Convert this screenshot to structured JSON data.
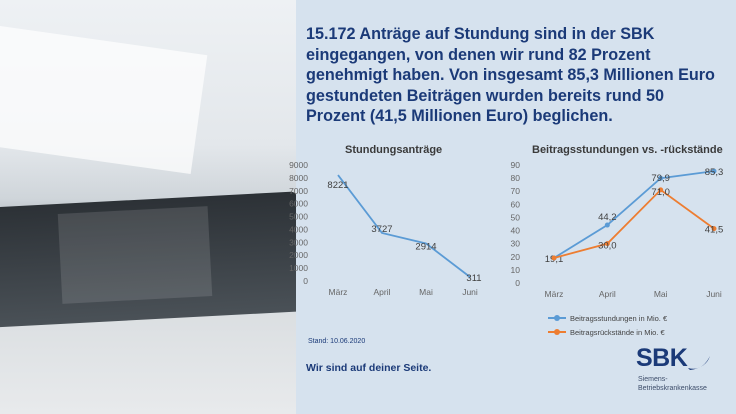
{
  "headline": "15.172 Anträge auf Stundung sind in der SBK eingegangen, von denen wir rund 82 Prozent genehmigt haben. Von insgesamt 85,3 Millionen Euro gestundeten Beiträgen wurden bereits rund 50 Prozent (41,5 Millionen Euro) beglichen.",
  "stand": "Stand: 10.06.2020",
  "slogan": "Wir sind auf deiner Seite.",
  "logo": {
    "word": "SBK",
    "sub_line1": "Siemens-",
    "sub_line2": "Betriebskrankenkasse"
  },
  "colors": {
    "headline": "#1b3a78",
    "series_blue": "#5b9bd5",
    "series_orange": "#ed7d31",
    "background": "#d6e2ee"
  },
  "chart_data": [
    {
      "type": "line",
      "title": "Stundungsanträge",
      "categories": [
        "März",
        "April",
        "Mai",
        "Juni"
      ],
      "series": [
        {
          "values": [
            8221,
            3727,
            2914,
            311
          ],
          "labels": [
            "8221",
            "3727",
            "2914",
            "311"
          ]
        }
      ],
      "ylim": [
        0,
        9000
      ],
      "yticks": [
        "0",
        "1000",
        "2000",
        "3000",
        "4000",
        "5000",
        "6000",
        "7000",
        "8000",
        "9000"
      ],
      "grid": false,
      "legend": "none"
    },
    {
      "type": "line",
      "title": "Beitragsstundungen vs. -rückstände",
      "categories": [
        "März",
        "April",
        "Mai",
        "Juni"
      ],
      "series": [
        {
          "name": "Beitragsstundungen in Mio. €",
          "values": [
            19.1,
            44.2,
            79.9,
            85.3
          ],
          "labels": [
            "19,1",
            "44,2",
            "79,9",
            "85,3"
          ]
        },
        {
          "name": "Beitragsrückstände in Mio. €",
          "values": [
            19.1,
            30.0,
            71.0,
            41.5
          ],
          "labels": [
            "",
            "30,0",
            "71,0",
            "41,5"
          ]
        }
      ],
      "ylim": [
        0,
        90
      ],
      "yticks": [
        "0",
        "10",
        "20",
        "30",
        "40",
        "50",
        "60",
        "70",
        "80",
        "90"
      ],
      "grid": false,
      "legend": "bottom"
    }
  ]
}
